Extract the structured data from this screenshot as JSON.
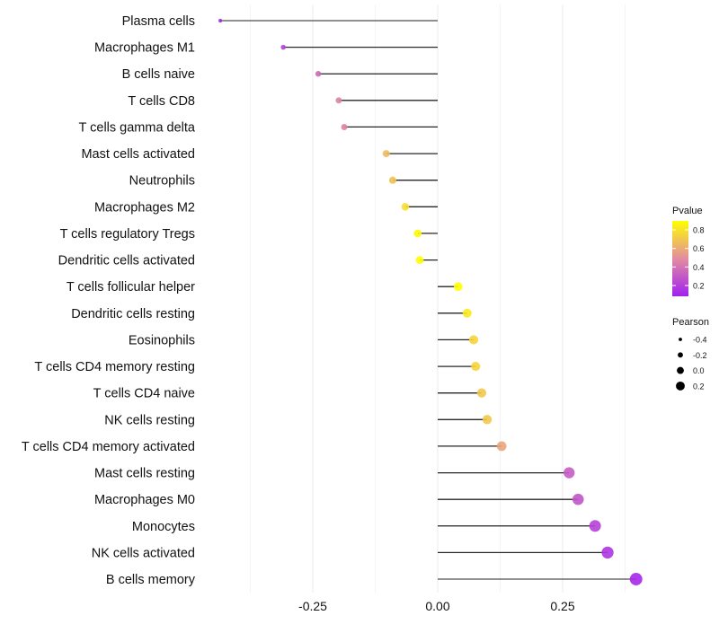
{
  "chart_data": {
    "type": "lollipop",
    "title": "",
    "xlabel": "",
    "ylabel": "",
    "xlim": [
      -0.47,
      0.43
    ],
    "x_ticks": [
      -0.25,
      0.0,
      0.25
    ],
    "x_tick_labels": [
      "-0.25",
      "0.00",
      "0.25"
    ],
    "grid": true,
    "categories": [
      "Plasma cells",
      "Macrophages M1",
      "B cells naive",
      "T cells CD8",
      "T cells gamma delta",
      "Mast cells activated",
      "Neutrophils",
      "Macrophages M2",
      "T cells regulatory  Tregs ",
      "Dendritic cells activated",
      "T cells follicular helper",
      "Dendritic cells resting",
      "Eosinophils",
      "T cells CD4 memory resting",
      "T cells CD4 naive",
      "NK cells resting",
      "T cells CD4 memory activated",
      "Mast cells resting",
      "Macrophages M0",
      "Monocytes",
      "NK cells activated",
      "B cells memory"
    ],
    "pearson": [
      -0.435,
      -0.309,
      -0.239,
      -0.198,
      -0.187,
      -0.103,
      -0.09,
      -0.065,
      -0.04,
      -0.036,
      0.041,
      0.059,
      0.072,
      0.076,
      0.088,
      0.099,
      0.128,
      0.263,
      0.281,
      0.315,
      0.34,
      0.397
    ],
    "pvalue": [
      0.07,
      0.2,
      0.35,
      0.45,
      0.45,
      0.65,
      0.68,
      0.78,
      0.88,
      0.9,
      0.9,
      0.82,
      0.75,
      0.75,
      0.7,
      0.7,
      0.58,
      0.3,
      0.27,
      0.2,
      0.15,
      0.1
    ],
    "color_legend": {
      "title": "Pvalue",
      "ticks": [
        0.8,
        0.6,
        0.4,
        0.2
      ],
      "tick_labels": [
        "0.8",
        "0.6",
        "0.4",
        "0.2"
      ],
      "range": [
        0.07,
        0.9
      ],
      "low_color": "#A020F0",
      "high_color": "#FFFF00",
      "placement": "right"
    },
    "size_legend": {
      "title": "Pearson",
      "values": [
        -0.4,
        -0.2,
        0.0,
        0.2
      ],
      "labels": [
        "-0.4",
        "-0.2",
        "0.0",
        "0.2"
      ],
      "placement": "right"
    }
  }
}
